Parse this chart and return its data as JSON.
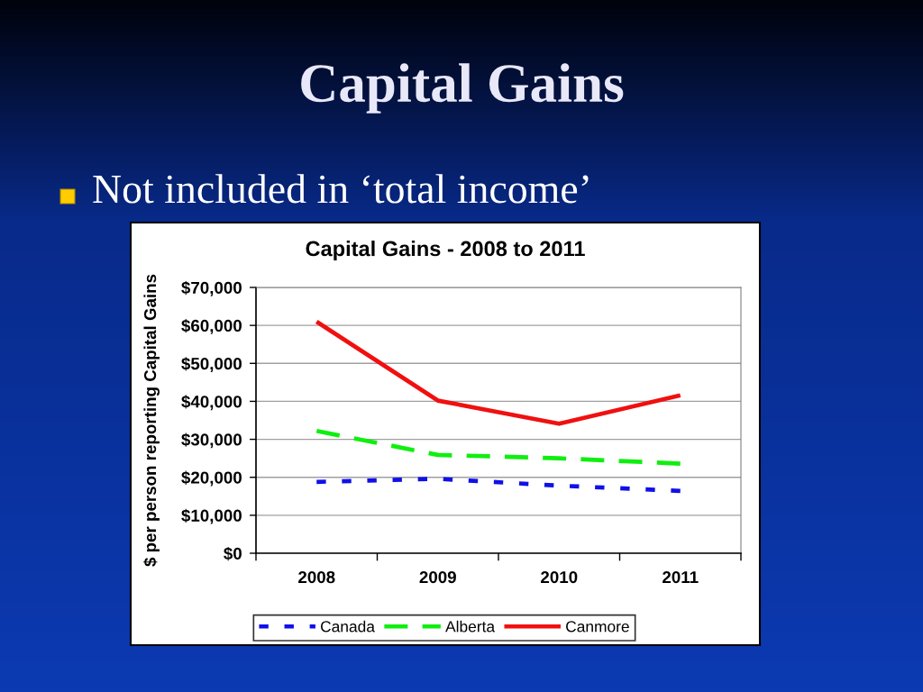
{
  "chart_data": {
    "type": "line",
    "title": "Capital Gains",
    "subtitle": "Not included in ‘total income’",
    "annotations": [
      "Capital Gains - 2008 to 2011"
    ],
    "ylabel": "$ per person reporting Capital Gains",
    "categories": [
      "2008",
      "2009",
      "2010",
      "2011"
    ],
    "series": [
      {
        "name": "Canada",
        "color": "#1010e8",
        "line_style": "dotted",
        "values": [
          18800,
          19600,
          17800,
          16400
        ]
      },
      {
        "name": "Alberta",
        "color": "#10ee10",
        "line_style": "dashed",
        "values": [
          32200,
          25900,
          25000,
          23600
        ]
      },
      {
        "name": "Canmore",
        "color": "#f01010",
        "line_style": "solid",
        "values": [
          61000,
          40200,
          34100,
          41600
        ]
      }
    ],
    "ylim": [
      0,
      70000
    ],
    "yticks": [
      {
        "value": 0,
        "label": "$0"
      },
      {
        "value": 10000,
        "label": "$10,000"
      },
      {
        "value": 20000,
        "label": "$20,000"
      },
      {
        "value": 30000,
        "label": "$30,000"
      },
      {
        "value": 40000,
        "label": "$40,000"
      },
      {
        "value": 50000,
        "label": "$50,000"
      },
      {
        "value": 60000,
        "label": "$60,000"
      },
      {
        "value": 70000,
        "label": "$70,000"
      }
    ],
    "grid": "y",
    "legend": "bottom"
  }
}
